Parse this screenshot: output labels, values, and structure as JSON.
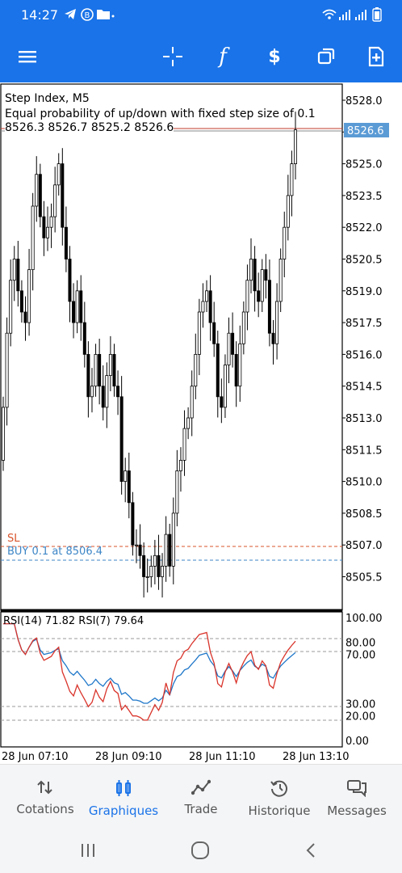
{
  "status_bar": {
    "time": "14:27",
    "right_icons": "wifi signal battery"
  },
  "toolbar": {
    "menu": "menu-icon",
    "crosshair": "crosshair-icon",
    "indicators": "f",
    "trade": "$",
    "windows": "windows-icon",
    "new_order": "new-order-icon"
  },
  "chart": {
    "symbol_line": "Step Index, M5",
    "description": "Equal probability of up/down with fixed step size of 0.1",
    "ohlc": "8526.3 8526.7 8525.2 8526.6",
    "current_price": "8526.6",
    "sl_label": "SL",
    "buy_label": "BUY 0.1 at 8506.4",
    "price_axis": [
      "8528.0",
      "8526.5",
      "8525.0",
      "8523.5",
      "8522.0",
      "8520.5",
      "8519.0",
      "8517.5",
      "8516.0",
      "8514.5",
      "8513.0",
      "8511.5",
      "8510.0",
      "8508.5",
      "8507.0",
      "8505.5"
    ],
    "rsi_title": "RSI(14) 71.82 RSI(7) 79.64",
    "rsi_axis": [
      "100.00",
      "80.00",
      "70.00",
      "30.00",
      "20.00",
      "0.00"
    ],
    "time_axis": [
      "28 Jun 07:10",
      "28 Jun 09:10",
      "28 Jun 11:10",
      "28 Jun 13:10"
    ],
    "colors": {
      "sl": "#d9542b",
      "buy": "#3d86c6",
      "rsi14": "#1f77c9",
      "rsi7": "#d9342b",
      "price_tag": "#5b9bd5"
    }
  },
  "chart_data": {
    "type": "candlestick",
    "title": "Step Index, M5",
    "price_range": [
      8504.2,
      8529.0
    ],
    "close_values": [
      8513.5,
      8517.0,
      8519.5,
      8520.5,
      8519.0,
      8518.0,
      8517.5,
      8520.0,
      8523.0,
      8524.5,
      8522.5,
      8521.5,
      8522.0,
      8522.5,
      8524.0,
      8525.0,
      8522.0,
      8520.5,
      8518.5,
      8517.5,
      8519.0,
      8517.5,
      8516.0,
      8514.0,
      8514.5,
      8516.0,
      8514.5,
      8513.5,
      8515.0,
      8516.0,
      8514.5,
      8514.0,
      8510.0,
      8510.5,
      8509.0,
      8507.0,
      8507.0,
      8506.5,
      8505.5,
      8505.5,
      8506.0,
      8506.5,
      8505.5,
      8506.0,
      8507.5,
      8506.0,
      8508.5,
      8510.5,
      8511.0,
      8512.5,
      8513.0,
      8514.5,
      8516.0,
      8518.0,
      8518.5,
      8519.0,
      8517.5,
      8516.5,
      8514.0,
      8513.5,
      8515.5,
      8517.0,
      8516.0,
      8514.5,
      8516.5,
      8518.0,
      8519.5,
      8520.5,
      8519.0,
      8518.5,
      8520.0,
      8519.5,
      8517.0,
      8516.5,
      8518.5,
      8520.5,
      8522.0,
      8523.5,
      8525.0,
      8526.6
    ],
    "rsi_range": [
      0,
      100
    ],
    "rsi14_last": 71.82,
    "rsi7_last": 79.64,
    "rsi_levels": [
      30,
      70
    ]
  },
  "nav": [
    {
      "label": "Cotations",
      "icon": "quotes-icon"
    },
    {
      "label": "Graphiques",
      "icon": "charts-icon"
    },
    {
      "label": "Trade",
      "icon": "trade-icon"
    },
    {
      "label": "Historique",
      "icon": "history-icon"
    },
    {
      "label": "Messages",
      "icon": "messages-icon"
    }
  ],
  "system_nav": {
    "recent": "recent-apps-icon",
    "home": "home-icon",
    "back": "back-icon"
  }
}
